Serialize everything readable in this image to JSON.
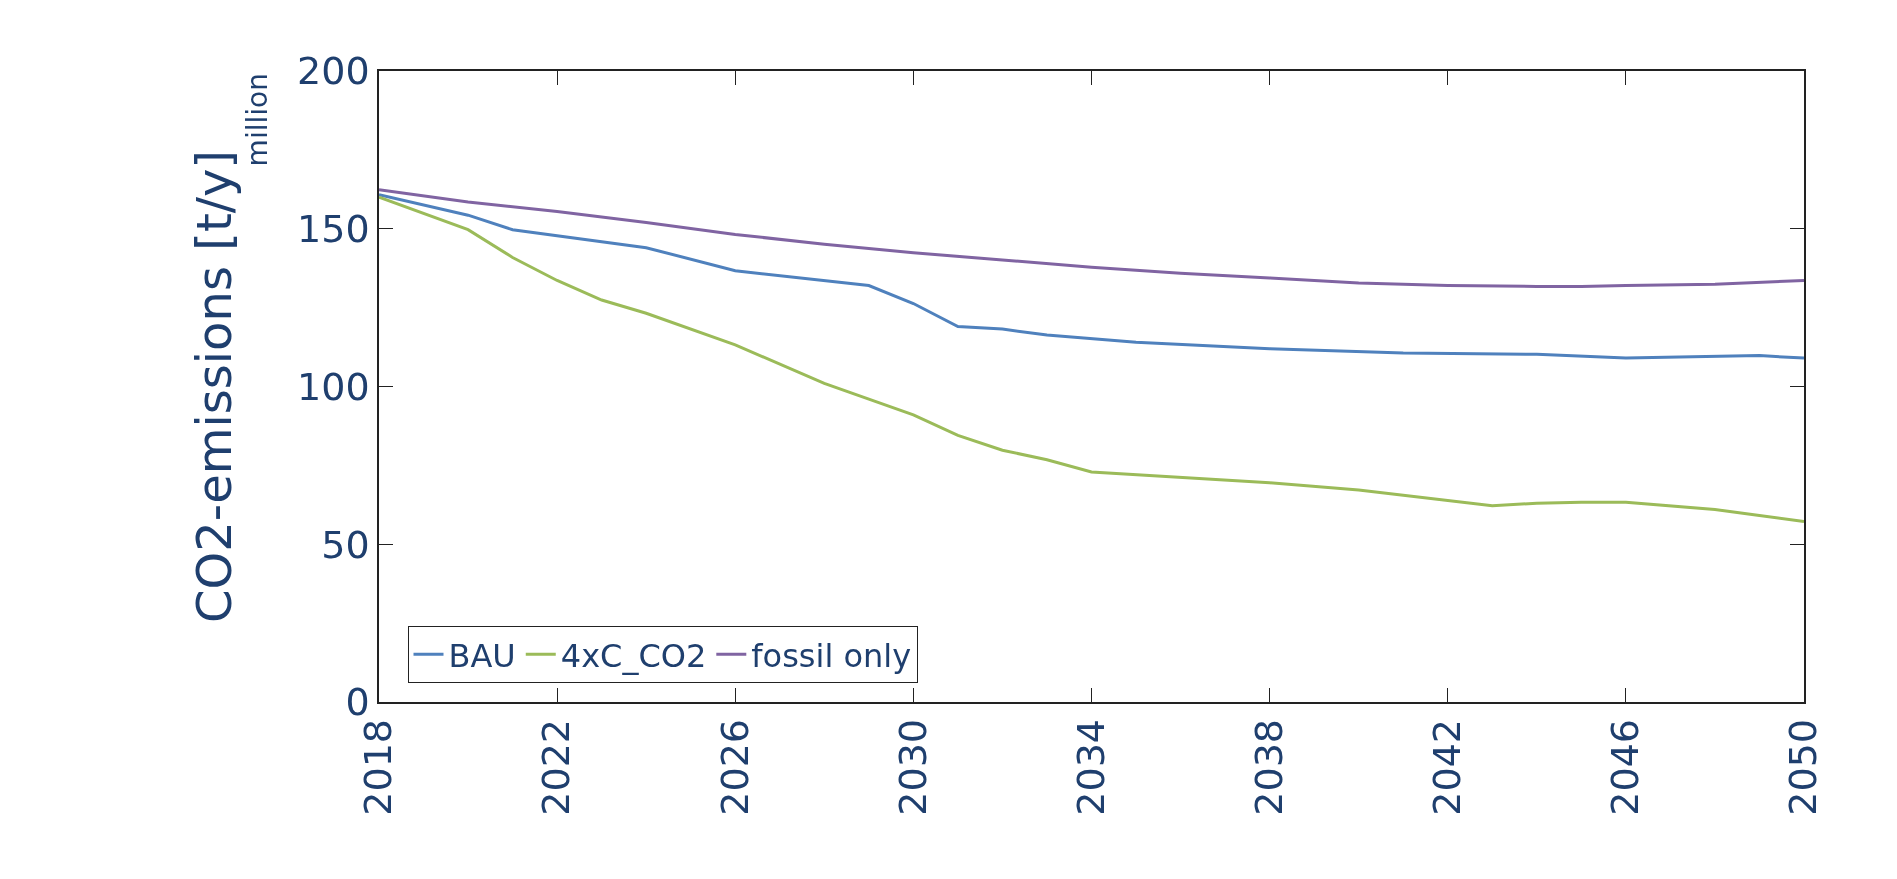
{
  "chart_data": {
    "type": "line",
    "ylabel": "CO2-emissions [t/y]",
    "annotations": [
      "million"
    ],
    "xlim": [
      2018,
      2050
    ],
    "xticks": [
      2018,
      2022,
      2026,
      2030,
      2034,
      2038,
      2042,
      2046,
      2050
    ],
    "ylim": [
      0,
      200
    ],
    "yticks": [
      0,
      50,
      100,
      150,
      200
    ],
    "legend": "bottom left",
    "marker": "none",
    "line_style": "solid",
    "series": [
      {
        "name": "BAU",
        "color": "#4f81bd",
        "x": [
          2018,
          2020,
          2021,
          2024,
          2026,
          2029,
          2030,
          2031,
          2032,
          2033,
          2035,
          2038,
          2041,
          2044,
          2046,
          2049,
          2050
        ],
        "values": [
          160.8,
          154.3,
          149.7,
          144,
          136.7,
          132,
          126.3,
          119,
          118.2,
          116.3,
          114,
          112,
          110.6,
          110.2,
          109,
          109.8,
          109
        ]
      },
      {
        "name": "4xC_CO2",
        "color": "#9bbb59",
        "x": [
          2018,
          2020,
          2021,
          2022,
          2023,
          2024,
          2026,
          2028,
          2029,
          2030,
          2031,
          2032,
          2033,
          2034,
          2038,
          2040,
          2043,
          2044,
          2045,
          2046,
          2048,
          2049,
          2050
        ],
        "values": [
          160,
          149.7,
          140.9,
          133.6,
          127.4,
          123.2,
          113.2,
          101,
          96,
          91,
          84.5,
          79.8,
          76.8,
          72.9,
          69.5,
          67.2,
          62.2,
          63,
          63.3,
          63.3,
          61,
          59.1,
          57.2
        ]
      },
      {
        "name": "fossil only",
        "color": "#8064a2",
        "x": [
          2018,
          2020,
          2022,
          2024,
          2026,
          2028,
          2030,
          2032,
          2034,
          2036,
          2038,
          2040,
          2042,
          2044,
          2045,
          2046,
          2048,
          2050
        ],
        "values": [
          162.4,
          158.5,
          155.5,
          152,
          148.2,
          145.1,
          142.4,
          140.1,
          137.8,
          135.9,
          134.4,
          132.8,
          132,
          131.7,
          131.7,
          132,
          132.4,
          133.6
        ]
      }
    ]
  }
}
